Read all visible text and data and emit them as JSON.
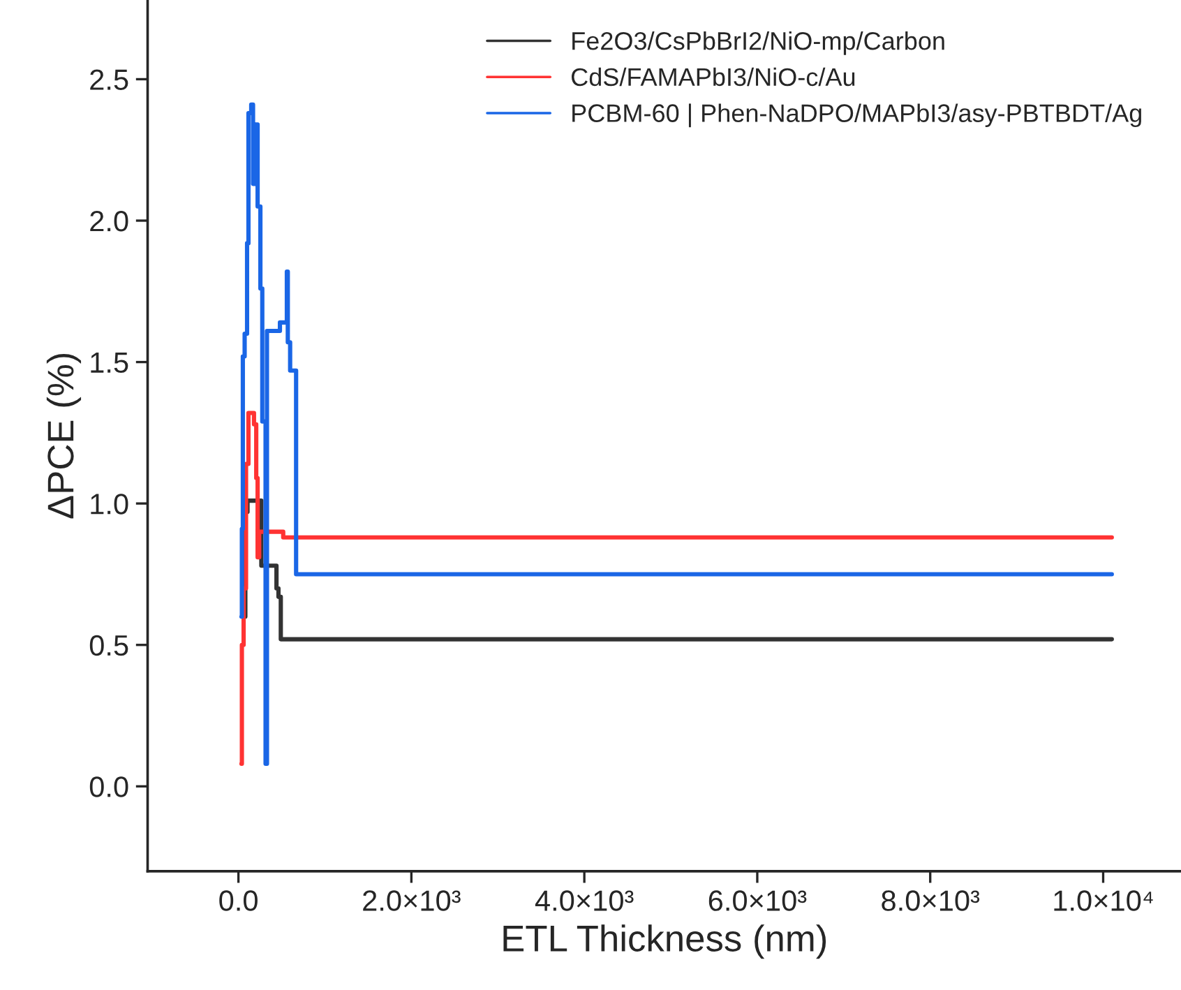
{
  "chart_data": {
    "type": "step",
    "xlabel": "ETL Thickness (nm)",
    "ylabel": "ΔPCE (%)",
    "xlim": [
      -1050,
      10900
    ],
    "ylim": [
      -0.3,
      2.78
    ],
    "xticks": [
      {
        "value": 0,
        "label": "0.0"
      },
      {
        "value": 2000,
        "label": "2.0×10³"
      },
      {
        "value": 4000,
        "label": "4.0×10³"
      },
      {
        "value": 6000,
        "label": "6.0×10³"
      },
      {
        "value": 8000,
        "label": "8.0×10³"
      },
      {
        "value": 10000,
        "label": "1.0×10⁴"
      }
    ],
    "yticks": [
      {
        "value": 0,
        "label": "0.0"
      },
      {
        "value": 0.5,
        "label": "0.5"
      },
      {
        "value": 1,
        "label": "1.0"
      },
      {
        "value": 1.5,
        "label": "1.5"
      },
      {
        "value": 2,
        "label": "2.0"
      },
      {
        "value": 2.5,
        "label": "2.5"
      }
    ],
    "grid": false,
    "legend": "top right",
    "series": [
      {
        "name": "Fe2O3/CsPbBrI2/NiO-mp/Carbon",
        "color": "#333333",
        "x": [
          72,
          80,
          105,
          265,
          440,
          463,
          490,
          10100
        ],
        "values": [
          0.6,
          0.97,
          1.01,
          0.78,
          0.7,
          0.67,
          0.52,
          0.52
        ]
      },
      {
        "name": "CdS/FAMAPbI3/NiO-c/Au",
        "color": "#ff3333",
        "x": [
          35,
          40,
          60,
          88,
          116,
          180,
          206,
          222,
          240,
          518,
          10100
        ],
        "values": [
          0.08,
          0.5,
          0.7,
          1.14,
          1.32,
          1.28,
          1.09,
          0.81,
          0.9,
          0.88,
          0.88
        ]
      },
      {
        "name": "PCBM-60 | Phen-NaDPO/MAPbI3/asy-PBTBDT/Ag",
        "color": "#1a66e6",
        "x": [
          35,
          40,
          51,
          72,
          100,
          116,
          148,
          169,
          196,
          222,
          254,
          276,
          314,
          330,
          480,
          560,
          571,
          598,
          667,
          10100
        ],
        "values": [
          0.6,
          0.91,
          1.52,
          1.6,
          1.92,
          2.38,
          2.41,
          2.13,
          2.34,
          2.05,
          1.76,
          1.29,
          0.08,
          1.61,
          1.64,
          1.82,
          1.57,
          1.47,
          0.75,
          0.75
        ]
      }
    ]
  }
}
